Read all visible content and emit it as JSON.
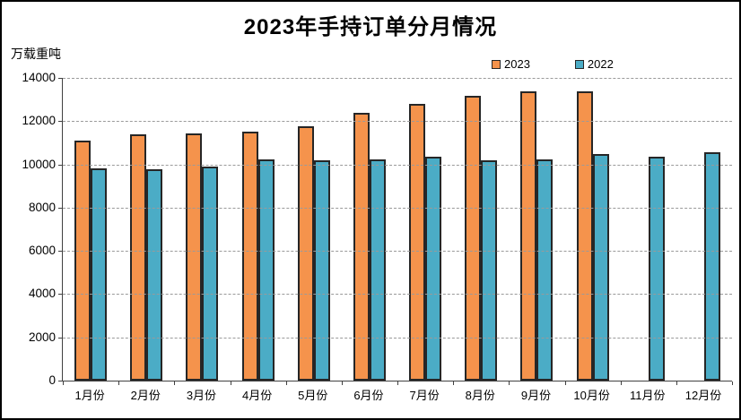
{
  "chart_data": {
    "type": "bar",
    "title": "2023年手持订单分月情况",
    "ylabel": "万载重吨",
    "xlabel": "",
    "categories": [
      "1月份",
      "2月份",
      "3月份",
      "4月份",
      "5月份",
      "6月份",
      "7月份",
      "8月份",
      "9月份",
      "10月份",
      "11月份",
      "12月份"
    ],
    "series": [
      {
        "name": "2023",
        "color": "#F5934C",
        "values": [
          11110,
          11370,
          11450,
          11500,
          11780,
          12380,
          12790,
          13160,
          13390,
          13380,
          null,
          null
        ]
      },
      {
        "name": "2022",
        "color": "#4BACC6",
        "values": [
          9810,
          9780,
          9900,
          10230,
          10210,
          10250,
          10350,
          10210,
          10230,
          10460,
          10340,
          10550
        ]
      }
    ],
    "ylim": [
      0,
      14000
    ],
    "yticks": [
      0,
      2000,
      4000,
      6000,
      8000,
      10000,
      12000,
      14000
    ],
    "grid": "horizontal-dashed",
    "legend_position": "top-center"
  },
  "colors": {
    "bar_2023": "#F5934C",
    "bar_2022": "#4BACC6",
    "bar_border": "#262626",
    "gridline": "#9a9a9a",
    "axis": "#404040",
    "background": "#ffffff",
    "outer_border": "#000000"
  }
}
